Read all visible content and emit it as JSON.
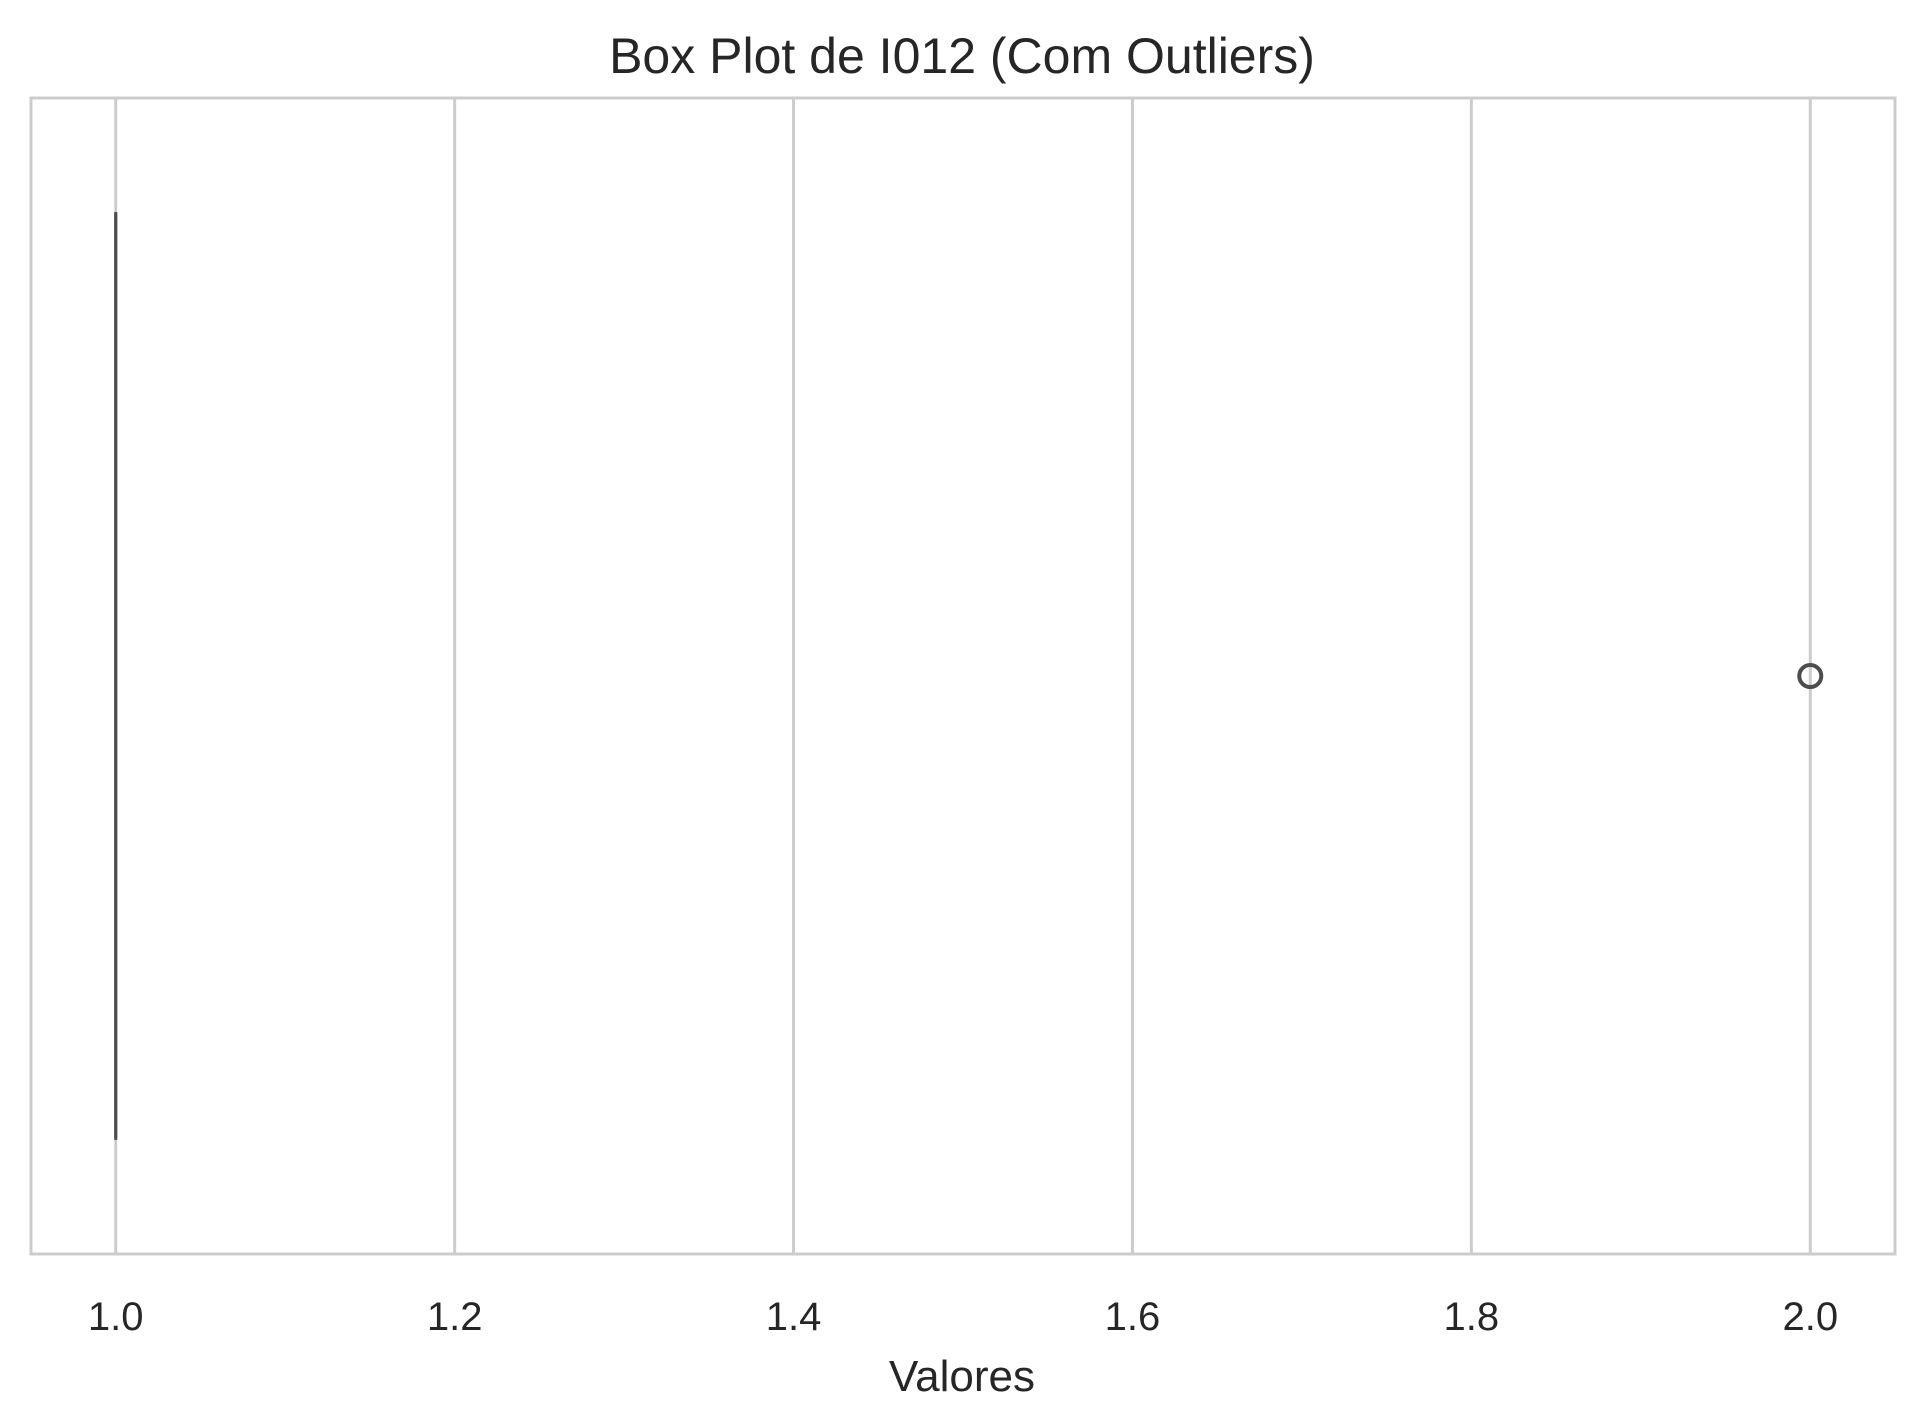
{
  "chart_data": {
    "type": "box",
    "orientation": "horizontal",
    "title": "Box Plot de I012 (Com Outliers)",
    "xlabel": "Valores",
    "ylabel": "",
    "xlim": [
      0.95,
      2.05
    ],
    "xticks": [
      1.0,
      1.2,
      1.4,
      1.6,
      1.8,
      2.0
    ],
    "xtick_labels": [
      "1.0",
      "1.2",
      "1.4",
      "1.6",
      "1.8",
      "2.0"
    ],
    "grid": true,
    "grid_axis": "x",
    "boxes": [
      {
        "min": 1.0,
        "q1": 1.0,
        "median": 1.0,
        "q3": 1.0,
        "max": 1.0,
        "outliers": [
          2.0
        ]
      }
    ],
    "colors": {
      "box_line": "#4d4d4d",
      "grid": "#cccccc",
      "spine": "#cccccc",
      "text": "#262626"
    }
  }
}
